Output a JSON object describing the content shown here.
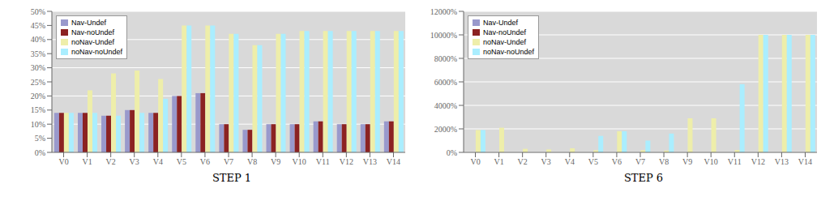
{
  "chart_data": [
    {
      "type": "bar",
      "title": "STEP 1",
      "categories": [
        "V0",
        "V1",
        "V2",
        "V3",
        "V4",
        "V5",
        "V6",
        "V7",
        "V8",
        "V9",
        "V10",
        "V11",
        "V12",
        "V13",
        "V14"
      ],
      "series": [
        {
          "name": "Nav-Undef",
          "color": "#9999cc",
          "values": [
            14,
            14,
            13,
            15,
            14,
            20,
            21,
            10,
            8,
            10,
            10,
            11,
            10,
            10,
            11
          ]
        },
        {
          "name": "Nav-noUndef",
          "color": "#8b2222",
          "values": [
            14,
            14,
            13,
            15,
            14,
            20,
            21,
            10,
            8,
            10,
            10,
            11,
            10,
            10,
            11
          ]
        },
        {
          "name": "noNav-Undef",
          "color": "#eeeeaa",
          "values": [
            14,
            22,
            28,
            29,
            26,
            45,
            45,
            42,
            38,
            42,
            43,
            43,
            43,
            43,
            43
          ]
        },
        {
          "name": "noNav-noUndef",
          "color": "#aaeeff",
          "values": [
            14,
            14,
            13,
            14,
            19,
            45,
            45,
            42,
            38,
            42,
            43,
            43,
            43,
            43,
            43
          ]
        }
      ],
      "ylim": [
        0,
        50
      ],
      "yticks": [
        {
          "value": 0,
          "label": "0%"
        },
        {
          "value": 5,
          "label": "5%"
        },
        {
          "value": 10,
          "label": "10%"
        },
        {
          "value": 15,
          "label": "15%"
        },
        {
          "value": 20,
          "label": "20%"
        },
        {
          "value": 25,
          "label": "25%"
        },
        {
          "value": 30,
          "label": "30%"
        },
        {
          "value": 35,
          "label": "35%"
        },
        {
          "value": 40,
          "label": "40%"
        },
        {
          "value": 45,
          "label": "45%"
        },
        {
          "value": 50,
          "label": "50%"
        }
      ],
      "grid": true,
      "legend": "upper left"
    },
    {
      "type": "bar",
      "title": "STEP 6",
      "categories": [
        "V0",
        "V1",
        "V2",
        "V3",
        "V4",
        "V5",
        "V6",
        "V7",
        "V8",
        "V9",
        "V10",
        "V11",
        "V12",
        "V13",
        "V14"
      ],
      "series": [
        {
          "name": "Nav-Undef",
          "color": "#9999cc",
          "values": [
            0,
            0,
            0,
            0,
            0,
            0,
            0,
            0,
            0,
            0,
            0,
            0,
            0,
            0,
            0
          ]
        },
        {
          "name": "Nav-noUndef",
          "color": "#8b2222",
          "values": [
            0,
            0,
            0,
            0,
            0,
            0,
            0,
            0,
            0,
            0,
            0,
            0,
            0,
            0,
            0
          ]
        },
        {
          "name": "noNav-Undef",
          "color": "#eeeeaa",
          "values": [
            1900,
            2100,
            300,
            250,
            350,
            180,
            1800,
            180,
            150,
            2900,
            2900,
            200,
            10000,
            10000,
            10000
          ]
        },
        {
          "name": "noNav-noUndef",
          "color": "#aaeeff",
          "values": [
            1900,
            0,
            0,
            0,
            0,
            1400,
            1800,
            1000,
            1600,
            0,
            0,
            5800,
            10000,
            10000,
            10000
          ]
        }
      ],
      "ylim": [
        0,
        12000
      ],
      "yticks": [
        {
          "value": 0,
          "label": "0%"
        },
        {
          "value": 2000,
          "label": "2000%"
        },
        {
          "value": 4000,
          "label": "4000%"
        },
        {
          "value": 6000,
          "label": "6000%"
        },
        {
          "value": 8000,
          "label": "8000%"
        },
        {
          "value": 10000,
          "label": "10000%"
        },
        {
          "value": 12000,
          "label": "12000%"
        }
      ],
      "grid": true,
      "legend": "upper left"
    }
  ]
}
